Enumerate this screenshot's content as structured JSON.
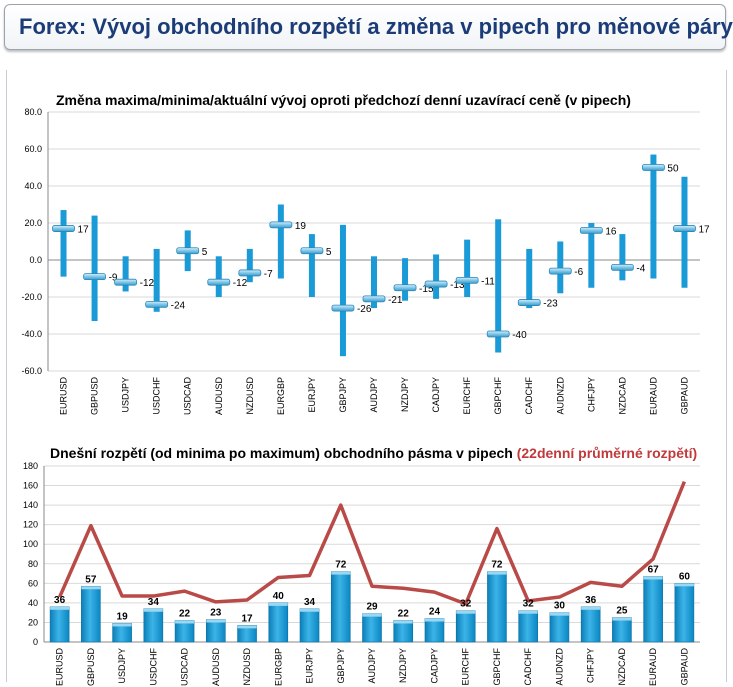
{
  "header": {
    "title": "Forex: Vývoj obchodního rozpětí a změna v pipech pro měnové páry"
  },
  "chart_data": [
    {
      "type": "bar",
      "title": "Změna maxima/minima/aktuální vývoj oproti předchozí denní uzavírací ceně (v pipech)",
      "categories": [
        "EURUSD",
        "GBPUSD",
        "USDJPY",
        "USDCHF",
        "USDCAD",
        "AUDUSD",
        "NZDUSD",
        "EURGBP",
        "EURJPY",
        "GBPJPY",
        "AUDJPY",
        "NZDJPY",
        "CADJPY",
        "EURCHF",
        "GBPCHF",
        "CADCHF",
        "AUDNZD",
        "CHFJPY",
        "NZDCAD",
        "EURAUD",
        "GBPAUD"
      ],
      "series": [
        {
          "name": "",
          "role": "high",
          "values": [
            27,
            24,
            2,
            6,
            16,
            2,
            6,
            30,
            14,
            19,
            2,
            1,
            3,
            11,
            22,
            6,
            10,
            20,
            14,
            57,
            45
          ]
        },
        {
          "name": "",
          "role": "low",
          "values": [
            -9,
            -33,
            -17,
            -28,
            -6,
            -20,
            -12,
            -10,
            -20,
            -52,
            -26,
            -22,
            -21,
            -20,
            -50,
            -26,
            -18,
            -15,
            -11,
            -10,
            -15
          ]
        },
        {
          "name": "",
          "role": "current",
          "values": [
            17,
            -9,
            -12,
            -24,
            5,
            -12,
            -7,
            19,
            5,
            -26,
            -21,
            -15,
            -13,
            -11,
            -40,
            -23,
            -6,
            16,
            -4,
            50,
            17
          ]
        }
      ],
      "y_ticks": [
        "80.0",
        "60.0",
        "40.0",
        "20.0",
        "0.0",
        "-20.0",
        "-40.0",
        "-60.0"
      ],
      "ylim": [
        -60,
        80
      ],
      "colors": {
        "bar": "#1a9ad6",
        "marker": "#5fb5dd"
      }
    },
    {
      "type": "bar",
      "title": "Dnešní rozpětí (od minima po maximum) obchodního pásma v pipech",
      "title_highlight": "(22denní průměrné rozpětí)",
      "categories": [
        "EURUSD",
        "GBPUSD",
        "USDJPY",
        "USDCHF",
        "USDCAD",
        "AUDUSD",
        "NZDUSD",
        "EURGBP",
        "EURJPY",
        "GBPJPY",
        "AUDJPY",
        "NZDJPY",
        "CADJPY",
        "EURCHF",
        "GBPCHF",
        "CADCHF",
        "AUDNZD",
        "CHFJPY",
        "NZDCAD",
        "EURAUD",
        "GBPAUD"
      ],
      "series": [
        {
          "name": "",
          "type": "bar",
          "values": [
            36,
            57,
            19,
            34,
            22,
            23,
            17,
            40,
            34,
            72,
            29,
            22,
            24,
            32,
            72,
            32,
            30,
            36,
            25,
            67,
            60
          ]
        },
        {
          "name": "",
          "type": "line",
          "values": [
            46,
            119,
            47,
            47,
            52,
            41,
            43,
            66,
            68,
            140,
            57,
            55,
            51,
            39,
            116,
            42,
            46,
            61,
            57,
            85,
            164
          ]
        }
      ],
      "y_ticks": [
        "180",
        "160",
        "140",
        "120",
        "100",
        "80",
        "60",
        "40",
        "20",
        "0"
      ],
      "ylim": [
        0,
        180
      ],
      "colors": {
        "bar": "#1a9ad6",
        "line": "#b94a48"
      }
    }
  ]
}
